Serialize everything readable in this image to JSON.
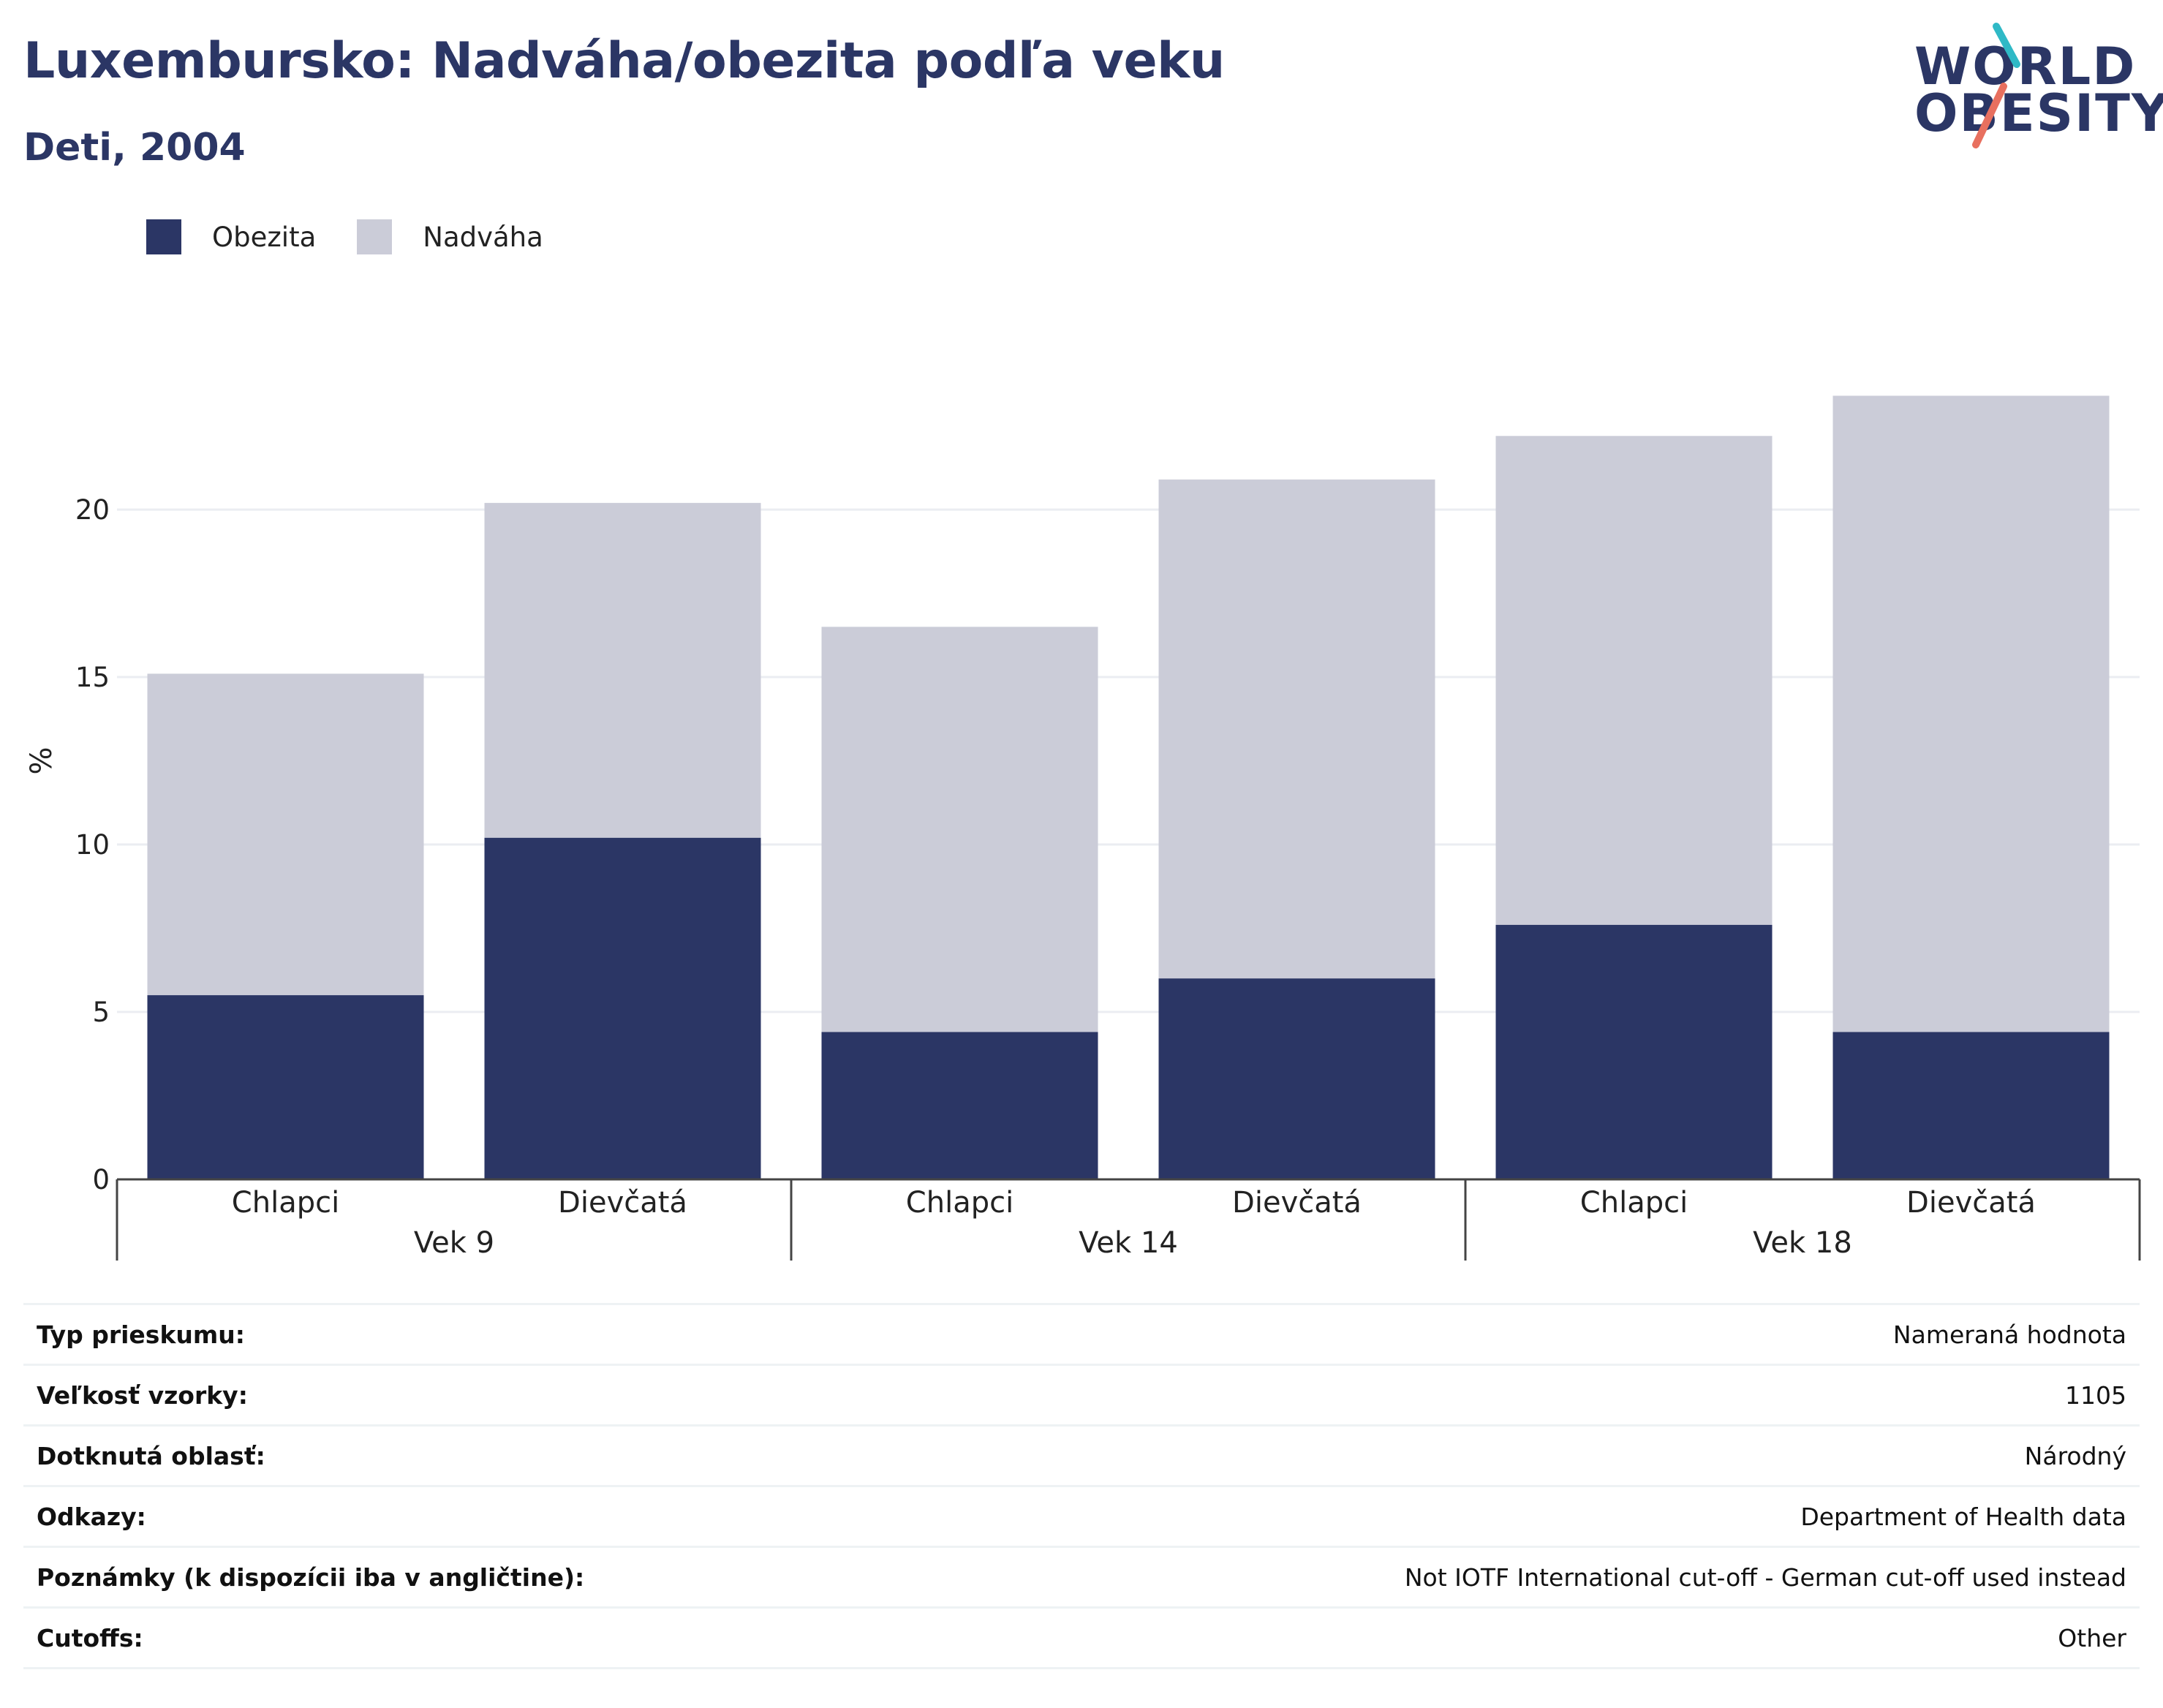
{
  "header": {
    "title": "Luxembursko: Nadváha/obezita podľa veku",
    "subtitle": "Deti, 2004"
  },
  "logo": {
    "line1": "WORLD",
    "line2": "OBESITY"
  },
  "colors": {
    "obezita": "#2b3665",
    "nadvaha": "#cbccd8",
    "grid": "#ebedf2",
    "axis": "#444444",
    "logo_teal": "#2fb9c6",
    "logo_coral": "#e8705f"
  },
  "legend": [
    {
      "label": "Obezita",
      "color": "#2b3665"
    },
    {
      "label": "Nadváha",
      "color": "#cbccd8"
    }
  ],
  "chart_data": {
    "type": "bar",
    "stacked": true,
    "ylabel": "%",
    "ylim": [
      0,
      25
    ],
    "yticks": [
      0,
      5,
      10,
      15,
      20
    ],
    "grid": true,
    "legend_position": "top-left",
    "groups": [
      "Vek 9",
      "Vek 14",
      "Vek 18"
    ],
    "categories": [
      "Chlapci",
      "Dievčatá",
      "Chlapci",
      "Dievčatá",
      "Chlapci",
      "Dievčatá"
    ],
    "group_index": [
      0,
      0,
      1,
      1,
      2,
      2
    ],
    "series": [
      {
        "name": "Obezita",
        "values": [
          5.5,
          10.2,
          4.4,
          6.0,
          7.6,
          4.4
        ]
      },
      {
        "name": "Nadváha",
        "values": [
          9.6,
          10.0,
          12.1,
          14.9,
          14.6,
          19.0
        ]
      }
    ]
  },
  "meta": [
    {
      "key": "Typ prieskumu:",
      "value": "Nameraná hodnota"
    },
    {
      "key": "Veľkosť vzorky:",
      "value": "1105"
    },
    {
      "key": "Dotknutá oblasť:",
      "value": "Národný"
    },
    {
      "key": "Odkazy:",
      "value": "Department of Health data"
    },
    {
      "key": "Poznámky (k dispozícii iba v angličtine):",
      "value": "Not IOTF International cut-off - German cut-off used instead"
    },
    {
      "key": "Cutoffs:",
      "value": "Other"
    }
  ]
}
